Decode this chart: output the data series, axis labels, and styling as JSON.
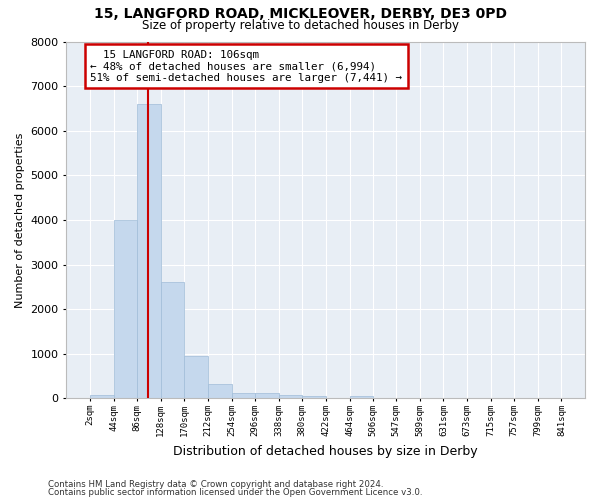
{
  "title1": "15, LANGFORD ROAD, MICKLEOVER, DERBY, DE3 0PD",
  "title2": "Size of property relative to detached houses in Derby",
  "xlabel": "Distribution of detached houses by size in Derby",
  "ylabel": "Number of detached properties",
  "footnote1": "Contains HM Land Registry data © Crown copyright and database right 2024.",
  "footnote2": "Contains public sector information licensed under the Open Government Licence v3.0.",
  "annotation_line1": "  15 LANGFORD ROAD: 106sqm",
  "annotation_line2": "← 48% of detached houses are smaller (6,994)",
  "annotation_line3": "51% of semi-detached houses are larger (7,441) →",
  "property_size": 106,
  "bar_edges": [
    2,
    44,
    86,
    128,
    170,
    212,
    254,
    296,
    338,
    380,
    422,
    464,
    506,
    547,
    589,
    631,
    673,
    715,
    757,
    799,
    841
  ],
  "bar_heights": [
    80,
    4000,
    6600,
    2600,
    950,
    320,
    130,
    120,
    70,
    55,
    0,
    55,
    0,
    0,
    0,
    0,
    0,
    0,
    0,
    0
  ],
  "bar_color": "#c5d8ed",
  "bar_edge_color": "#a0bcd8",
  "red_line_color": "#cc0000",
  "annotation_box_color": "#cc0000",
  "background_color": "#e8eef5",
  "ylim": [
    0,
    8000
  ],
  "yticks": [
    0,
    1000,
    2000,
    3000,
    4000,
    5000,
    6000,
    7000,
    8000
  ]
}
